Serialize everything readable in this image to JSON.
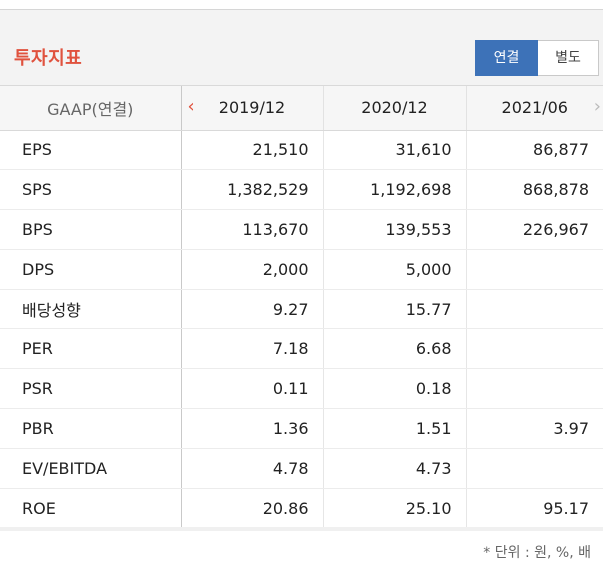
{
  "header": {
    "title": "투자지표",
    "toggle": {
      "consolidated": "연결",
      "separate": "별도"
    }
  },
  "table": {
    "corner_label": "GAAP(연결)",
    "nav_prev": "‹",
    "nav_next": "›",
    "columns": [
      "2019/12",
      "2020/12",
      "2021/06"
    ],
    "rows": [
      {
        "label": "EPS",
        "values": [
          "21,510",
          "31,610",
          "86,877"
        ]
      },
      {
        "label": "SPS",
        "values": [
          "1,382,529",
          "1,192,698",
          "868,878"
        ]
      },
      {
        "label": "BPS",
        "values": [
          "113,670",
          "139,553",
          "226,967"
        ]
      },
      {
        "label": "DPS",
        "values": [
          "2,000",
          "5,000",
          ""
        ]
      },
      {
        "label": "배당성향",
        "values": [
          "9.27",
          "15.77",
          ""
        ]
      },
      {
        "label": "PER",
        "values": [
          "7.18",
          "6.68",
          ""
        ]
      },
      {
        "label": "PSR",
        "values": [
          "0.11",
          "0.18",
          ""
        ]
      },
      {
        "label": "PBR",
        "values": [
          "1.36",
          "1.51",
          "3.97"
        ]
      },
      {
        "label": "EV/EBITDA",
        "values": [
          "4.78",
          "4.73",
          ""
        ]
      },
      {
        "label": "ROE",
        "values": [
          "20.86",
          "25.10",
          "95.17"
        ]
      }
    ]
  },
  "footer": {
    "unit_note": "* 단위 : 원, %, 배"
  },
  "colors": {
    "accent": "#e0523e",
    "toggle_active": "#3d72b8"
  }
}
